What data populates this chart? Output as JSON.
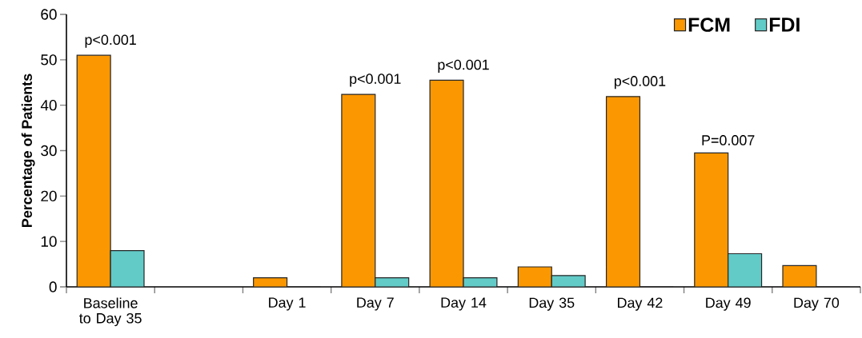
{
  "chart_data": {
    "type": "bar",
    "ylabel": "Percentage of Patients",
    "categories": [
      "Baseline to Day 35",
      null,
      "Day 1",
      "Day 7",
      "Day 14",
      "Day 35",
      "Day 42",
      "Day 49",
      "Day 70"
    ],
    "series": [
      {
        "name": "FCM",
        "color": "#fb9700",
        "values": [
          51.0,
          null,
          2.0,
          42.4,
          45.5,
          4.4,
          41.9,
          29.5,
          4.7
        ]
      },
      {
        "name": "FDI",
        "color": "#62cbc8",
        "values": [
          8.0,
          null,
          0,
          2.0,
          2.0,
          2.5,
          0,
          7.3,
          0
        ]
      }
    ],
    "ylim": [
      0,
      60
    ],
    "yticks": [
      0,
      10,
      20,
      30,
      40,
      50,
      60
    ],
    "legend": "top right",
    "grid": false,
    "annotations": [
      {
        "text": "p<0.001",
        "x": "Baseline to Day 35",
        "y": 51.0
      },
      {
        "text": "p<0.001",
        "x": "Day 7",
        "y": 42.4
      },
      {
        "text": "p<0.001",
        "x": "Day 14",
        "y": 45.5
      },
      {
        "text": "p<0.001",
        "x": "Day 42",
        "y": 41.9
      },
      {
        "text": "P=0.007",
        "x": "Day 49",
        "y": 29.5
      }
    ]
  }
}
